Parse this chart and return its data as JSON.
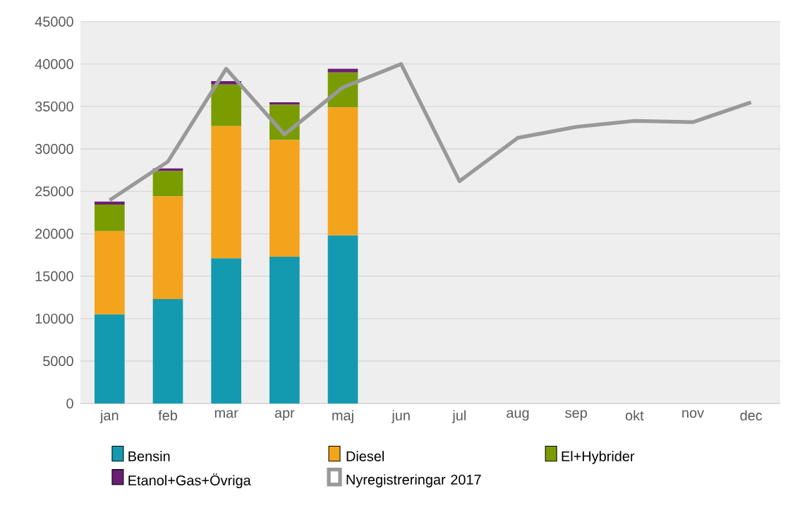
{
  "chart_data": {
    "type": "bar",
    "stacked": true,
    "categories": [
      "jan",
      "feb",
      "mar",
      "apr",
      "maj",
      "jun",
      "jul",
      "aug",
      "sep",
      "okt",
      "nov",
      "dec"
    ],
    "series": [
      {
        "name": "Bensin",
        "color": "#1399b0",
        "values": [
          10500,
          12300,
          17100,
          17300,
          19800,
          null,
          null,
          null,
          null,
          null,
          null,
          null
        ]
      },
      {
        "name": "Diesel",
        "color": "#f4a41c",
        "values": [
          9800,
          12100,
          15600,
          13750,
          15100,
          null,
          null,
          null,
          null,
          null,
          null,
          null
        ]
      },
      {
        "name": "El+Hybrider",
        "color": "#7a9c01",
        "values": [
          3150,
          3000,
          4900,
          4150,
          4100,
          null,
          null,
          null,
          null,
          null,
          null,
          null
        ]
      },
      {
        "name": "Etanol+Gas+Övriga",
        "color": "#6b1e74",
        "values": [
          350,
          300,
          400,
          300,
          450,
          null,
          null,
          null,
          null,
          null,
          null,
          null
        ]
      },
      {
        "name": "Nyregistreringar 2017",
        "type": "line",
        "color": "#999999",
        "values": [
          23950,
          28500,
          39450,
          31700,
          37250,
          40000,
          26200,
          31300,
          32600,
          33300,
          33150,
          35500
        ]
      }
    ],
    "ylim": [
      0,
      45000
    ],
    "yticks": [
      0,
      5000,
      10000,
      15000,
      20000,
      25000,
      30000,
      35000,
      40000,
      45000
    ],
    "grid": "y",
    "legend": "bottom"
  }
}
